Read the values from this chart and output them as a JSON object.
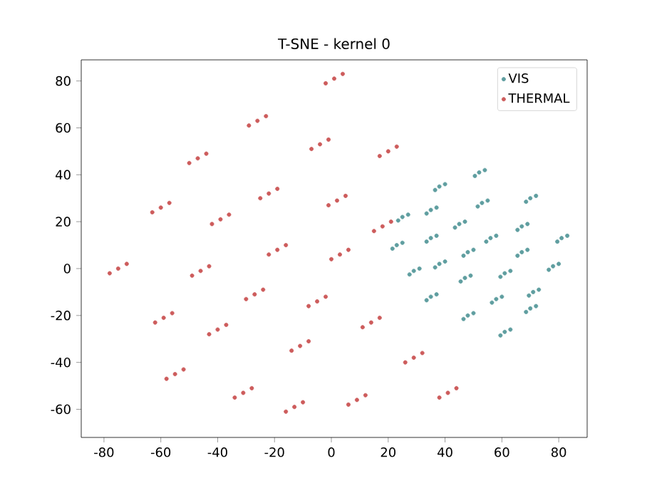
{
  "chart_data": {
    "type": "scatter",
    "title": "T-SNE - kernel 0",
    "xlim": [
      -88,
      90
    ],
    "ylim": [
      -72,
      89
    ],
    "xticks": [
      -80,
      -60,
      -40,
      -20,
      0,
      20,
      40,
      60,
      80
    ],
    "yticks": [
      -60,
      -40,
      -20,
      0,
      20,
      40,
      60,
      80
    ],
    "legend": "top right",
    "marker": "circle",
    "grid": false,
    "series": [
      {
        "name": "VIS",
        "color": "#5f9ea0",
        "x": [
          52,
          54,
          50.5,
          38,
          40,
          36.5,
          25,
          27,
          23.5,
          35,
          37,
          33.5,
          53,
          55,
          51.5,
          70,
          72,
          68.5,
          45,
          47,
          43.5,
          67,
          69,
          65.5,
          35,
          37,
          33.5,
          56,
          58,
          54.5,
          81,
          83,
          79.5,
          23,
          25,
          21.5,
          48,
          50,
          46.5,
          67,
          69,
          65.5,
          78,
          80,
          76.5,
          29,
          31,
          27.5,
          38,
          40,
          36.5,
          47,
          49,
          45.5,
          61,
          63,
          59.5,
          35,
          37,
          33.5,
          58,
          60,
          56.5,
          71,
          73,
          69.5,
          70,
          72,
          68.5,
          48,
          50,
          46.5,
          61,
          63,
          59.5
        ],
        "values": [
          41,
          42,
          39.5,
          35,
          36,
          33.5,
          22,
          23,
          20.5,
          25,
          26,
          23.5,
          28,
          29,
          26.5,
          30,
          31,
          28.5,
          19,
          20,
          17.5,
          18,
          19,
          16.5,
          13,
          14,
          11.5,
          13,
          14,
          11.5,
          13,
          14,
          11.5,
          10,
          11,
          8.5,
          7,
          8,
          5.5,
          7,
          8,
          5.5,
          1,
          2,
          -0.5,
          -1,
          0,
          -2.5,
          2,
          3,
          0.5,
          -4,
          -3,
          -5.5,
          -2,
          -1,
          -3.5,
          -12,
          -11,
          -13.5,
          -13,
          -12,
          -14.5,
          -10,
          -9,
          -11.5,
          -17,
          -16,
          -18.5,
          -20,
          -19,
          -21.5,
          -27,
          -26,
          -28.5
        ]
      },
      {
        "name": "THERMAL",
        "color": "#cd5c5c",
        "x": [
          1,
          4,
          -2,
          -26,
          -23,
          -29,
          -4,
          -1,
          -7,
          -47,
          -44,
          -50,
          20,
          23,
          17,
          -22,
          -19,
          -25,
          -60,
          -57,
          -63,
          2,
          5,
          -1,
          -39,
          -36,
          -42,
          18,
          21,
          15,
          -19,
          -16,
          -22,
          3,
          6,
          0,
          -75,
          -72,
          -78,
          -46,
          -43,
          -49,
          -27,
          -24,
          -30,
          -5,
          -2,
          -8,
          -59,
          -56,
          -62,
          -40,
          -37,
          -43,
          14,
          17,
          11,
          -11,
          -8,
          -14,
          29,
          32,
          26,
          -55,
          -52,
          -58,
          -31,
          -28,
          -34,
          -13,
          -10,
          -16,
          9,
          12,
          6,
          41,
          44,
          38
        ],
        "values": [
          81,
          83,
          79,
          63,
          65,
          61,
          53,
          55,
          51,
          47,
          49,
          45,
          50,
          52,
          48,
          32,
          34,
          30,
          26,
          28,
          24,
          29,
          31,
          27,
          21,
          23,
          19,
          18,
          20,
          16,
          8,
          10,
          6,
          6,
          8,
          4,
          0,
          2,
          -2,
          -1,
          1,
          -3,
          -11,
          -9,
          -13,
          -14,
          -12,
          -16,
          -21,
          -19,
          -23,
          -26,
          -24,
          -28,
          -23,
          -21,
          -25,
          -33,
          -31,
          -35,
          -38,
          -36,
          -40,
          -45,
          -43,
          -47,
          -53,
          -51,
          -55,
          -59,
          -57,
          -61,
          -56,
          -54,
          -58,
          -53,
          -51,
          -55
        ]
      }
    ]
  }
}
